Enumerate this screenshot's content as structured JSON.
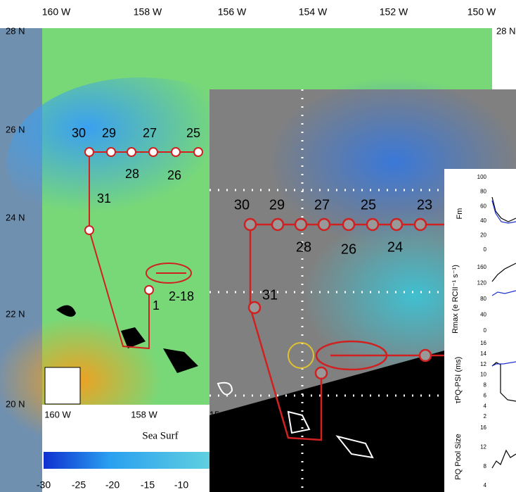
{
  "map": {
    "top_lon_labels": [
      "160 W",
      "158 W",
      "156 W",
      "154 W",
      "152 W",
      "150 W"
    ],
    "lat_labels": [
      "28 N",
      "26 N",
      "24 N",
      "22 N",
      "20 N"
    ],
    "right_lat_label": "28 N",
    "bottom_lon_labels": [
      "160 W",
      "158 W",
      "15"
    ],
    "colorbar_title": "Sea Surf",
    "colorbar_ticks": [
      "-30",
      "-25",
      "-20",
      "-15",
      "-10"
    ],
    "stations": [
      "30",
      "29",
      "27",
      "25",
      "28",
      "26",
      "31",
      "1",
      "2-18"
    ]
  },
  "inset": {
    "stations": [
      "30",
      "29",
      "27",
      "25",
      "23",
      "28",
      "26",
      "24",
      "31"
    ]
  },
  "panels": [
    {
      "ylabel": "Fm",
      "ticks": [
        "100",
        "80",
        "60",
        "40",
        "20",
        "0"
      ]
    },
    {
      "ylabel": "Rmax (e RCII⁻¹ s⁻¹)",
      "ticks": [
        "160",
        "120",
        "80",
        "40",
        "0"
      ]
    },
    {
      "ylabel": "τPQ-PSI (ms)",
      "ticks": [
        "16",
        "14",
        "12",
        "10",
        "8",
        "6",
        "4",
        "2"
      ]
    },
    {
      "ylabel": "PQ Pool Size",
      "ticks": [
        "16",
        "12",
        "8",
        "4"
      ]
    }
  ]
}
